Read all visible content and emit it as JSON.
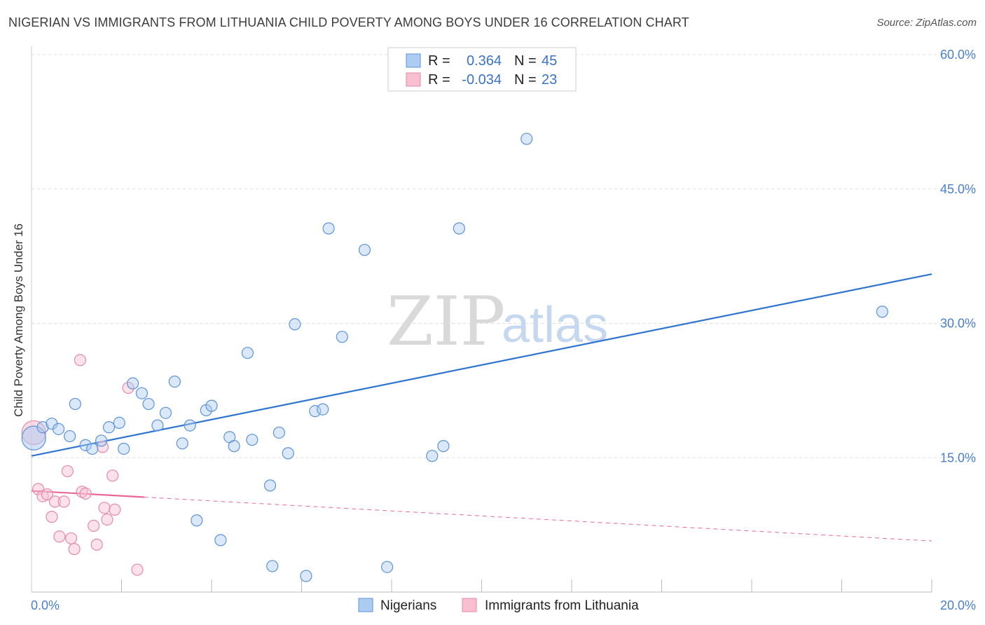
{
  "title": "NIGERIAN VS IMMIGRANTS FROM LITHUANIA CHILD POVERTY AMONG BOYS UNDER 16 CORRELATION CHART",
  "source": "Source: ZipAtlas.com",
  "watermark": {
    "zip": "ZIP",
    "atlas": "atlas"
  },
  "colors": {
    "blue_fill": "#aecbf2",
    "blue_stroke": "#5d93d9",
    "blue_line": "#2f74d0",
    "pink_fill": "#f7bfd0",
    "pink_stroke": "#e58aa8",
    "pink_line": "#e8689a",
    "tick": "#4a7fd0",
    "grid": "#dddddd"
  },
  "legend": {
    "rows": [
      {
        "r_label": "R =",
        "r_value": "0.364",
        "n_label": "N =",
        "n_value": "45"
      },
      {
        "r_label": "R =",
        "r_value": "-0.034",
        "n_label": "N =",
        "n_value": "23"
      }
    ]
  },
  "chart_data": {
    "type": "scatter",
    "title": "NIGERIAN VS IMMIGRANTS FROM LITHUANIA CHILD POVERTY AMONG BOYS UNDER 16 CORRELATION CHART",
    "xlabel": "",
    "ylabel": "Child Poverty Among Boys Under 16",
    "xlim": [
      0,
      20
    ],
    "ylim": [
      0,
      60
    ],
    "x_tick_labels": {
      "left": "0.0%",
      "right": "20.0%"
    },
    "y_ticks": [
      {
        "value": 60,
        "label": "60.0%"
      },
      {
        "value": 45,
        "label": "45.0%"
      },
      {
        "value": 30,
        "label": "30.0%"
      },
      {
        "value": 15,
        "label": "15.0%"
      }
    ],
    "series": [
      {
        "name": "Nigerians",
        "color": "blue",
        "r": 0.364,
        "n": 45,
        "trend": {
          "x": [
            0,
            20
          ],
          "y": [
            15.2,
            35.5
          ],
          "dashed_to": null
        },
        "points": [
          [
            0.05,
            17.2,
            "big"
          ],
          [
            0.25,
            18.4
          ],
          [
            0.45,
            18.8
          ],
          [
            0.6,
            18.2
          ],
          [
            0.85,
            17.4
          ],
          [
            0.97,
            21.0
          ],
          [
            1.2,
            16.4
          ],
          [
            1.35,
            16.0
          ],
          [
            1.55,
            16.9
          ],
          [
            1.72,
            18.4
          ],
          [
            1.95,
            18.9
          ],
          [
            2.05,
            16.0
          ],
          [
            2.25,
            23.3
          ],
          [
            2.45,
            22.2
          ],
          [
            2.6,
            21.0
          ],
          [
            2.8,
            18.6
          ],
          [
            2.98,
            20.0
          ],
          [
            3.18,
            23.5
          ],
          [
            3.35,
            16.6
          ],
          [
            3.52,
            18.6
          ],
          [
            3.88,
            20.3
          ],
          [
            4.0,
            20.8
          ],
          [
            4.4,
            17.3
          ],
          [
            4.5,
            16.3
          ],
          [
            4.8,
            26.7
          ],
          [
            4.9,
            17.0
          ],
          [
            5.3,
            11.9
          ],
          [
            5.5,
            17.8
          ],
          [
            5.7,
            15.5
          ],
          [
            5.85,
            29.9
          ],
          [
            6.3,
            20.2
          ],
          [
            6.47,
            20.4
          ],
          [
            6.6,
            40.6
          ],
          [
            6.9,
            28.5
          ],
          [
            7.4,
            38.2
          ],
          [
            8.9,
            15.2
          ],
          [
            9.15,
            16.3
          ],
          [
            9.5,
            40.6
          ],
          [
            11.0,
            50.6
          ],
          [
            18.9,
            31.3
          ],
          [
            3.67,
            8.0
          ],
          [
            4.2,
            5.8
          ],
          [
            5.35,
            2.9
          ],
          [
            6.1,
            1.8
          ],
          [
            7.9,
            2.8
          ]
        ]
      },
      {
        "name": "Immigrants from Lithuania",
        "color": "pink",
        "r": -0.034,
        "n": 23,
        "trend": {
          "x": [
            0,
            2.5
          ],
          "y": [
            11.3,
            10.6
          ],
          "dashed_to": [
            20,
            5.7
          ]
        },
        "points": [
          [
            0.05,
            17.8,
            "big"
          ],
          [
            0.15,
            11.5
          ],
          [
            0.25,
            10.7
          ],
          [
            0.35,
            10.9
          ],
          [
            0.45,
            8.4
          ],
          [
            0.52,
            10.1
          ],
          [
            0.62,
            6.2
          ],
          [
            0.72,
            10.1
          ],
          [
            0.8,
            13.5
          ],
          [
            0.88,
            6.0
          ],
          [
            0.95,
            4.8
          ],
          [
            1.08,
            25.9
          ],
          [
            1.12,
            11.2
          ],
          [
            1.2,
            11.0
          ],
          [
            1.38,
            7.4
          ],
          [
            1.45,
            5.3
          ],
          [
            1.58,
            16.2
          ],
          [
            1.62,
            9.4
          ],
          [
            1.68,
            8.1
          ],
          [
            1.8,
            13.0
          ],
          [
            1.85,
            9.2
          ],
          [
            2.15,
            22.8
          ],
          [
            2.35,
            2.5
          ]
        ]
      }
    ]
  }
}
